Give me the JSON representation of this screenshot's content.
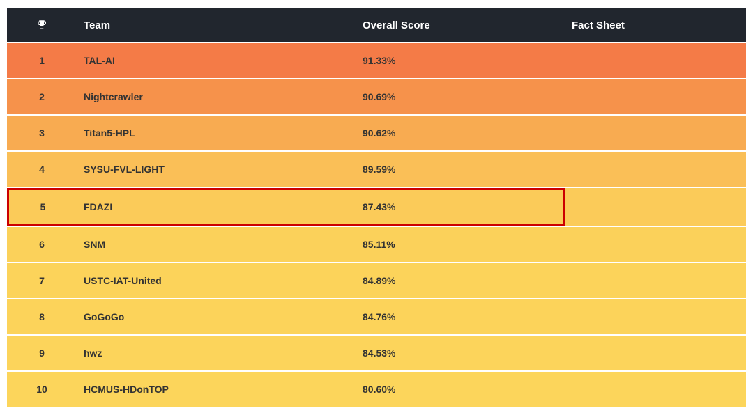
{
  "type": "table",
  "header": {
    "background_color": "#21262e",
    "text_color": "#ffffff",
    "columns": [
      {
        "key": "rank",
        "label": "",
        "icon": "trophy-icon"
      },
      {
        "key": "team",
        "label": "Team"
      },
      {
        "key": "score",
        "label": "Overall Score"
      },
      {
        "key": "fact",
        "label": "Fact Sheet"
      }
    ]
  },
  "highlight": {
    "row_index": 4,
    "border_color": "#cc0000",
    "border_width": 3,
    "span_cols": 3
  },
  "row_colors": [
    "#f47b47",
    "#f6924b",
    "#f8ab51",
    "#fabf57",
    "#fbcb59",
    "#fbd15a",
    "#fcd35a",
    "#fcd35a",
    "#fcd45b",
    "#fcd55b"
  ],
  "text_color": "#333333",
  "font_size_header": 15,
  "font_size_cell": 14,
  "font_weight_cell": 700,
  "rows": [
    {
      "rank": "1",
      "team": "TAL-AI",
      "score": "91.33%",
      "fact": ""
    },
    {
      "rank": "2",
      "team": "Nightcrawler",
      "score": "90.69%",
      "fact": ""
    },
    {
      "rank": "3",
      "team": "Titan5-HPL",
      "score": "90.62%",
      "fact": ""
    },
    {
      "rank": "4",
      "team": "SYSU-FVL-LIGHT",
      "score": "89.59%",
      "fact": ""
    },
    {
      "rank": "5",
      "team": "FDAZI",
      "score": "87.43%",
      "fact": ""
    },
    {
      "rank": "6",
      "team": "SNM",
      "score": "85.11%",
      "fact": ""
    },
    {
      "rank": "7",
      "team": "USTC-IAT-United",
      "score": "84.89%",
      "fact": ""
    },
    {
      "rank": "8",
      "team": "GoGoGo",
      "score": "84.76%",
      "fact": ""
    },
    {
      "rank": "9",
      "team": "hwz",
      "score": "84.53%",
      "fact": ""
    },
    {
      "rank": "10",
      "team": "HCMUS-HDonTOP",
      "score": "80.60%",
      "fact": ""
    }
  ]
}
